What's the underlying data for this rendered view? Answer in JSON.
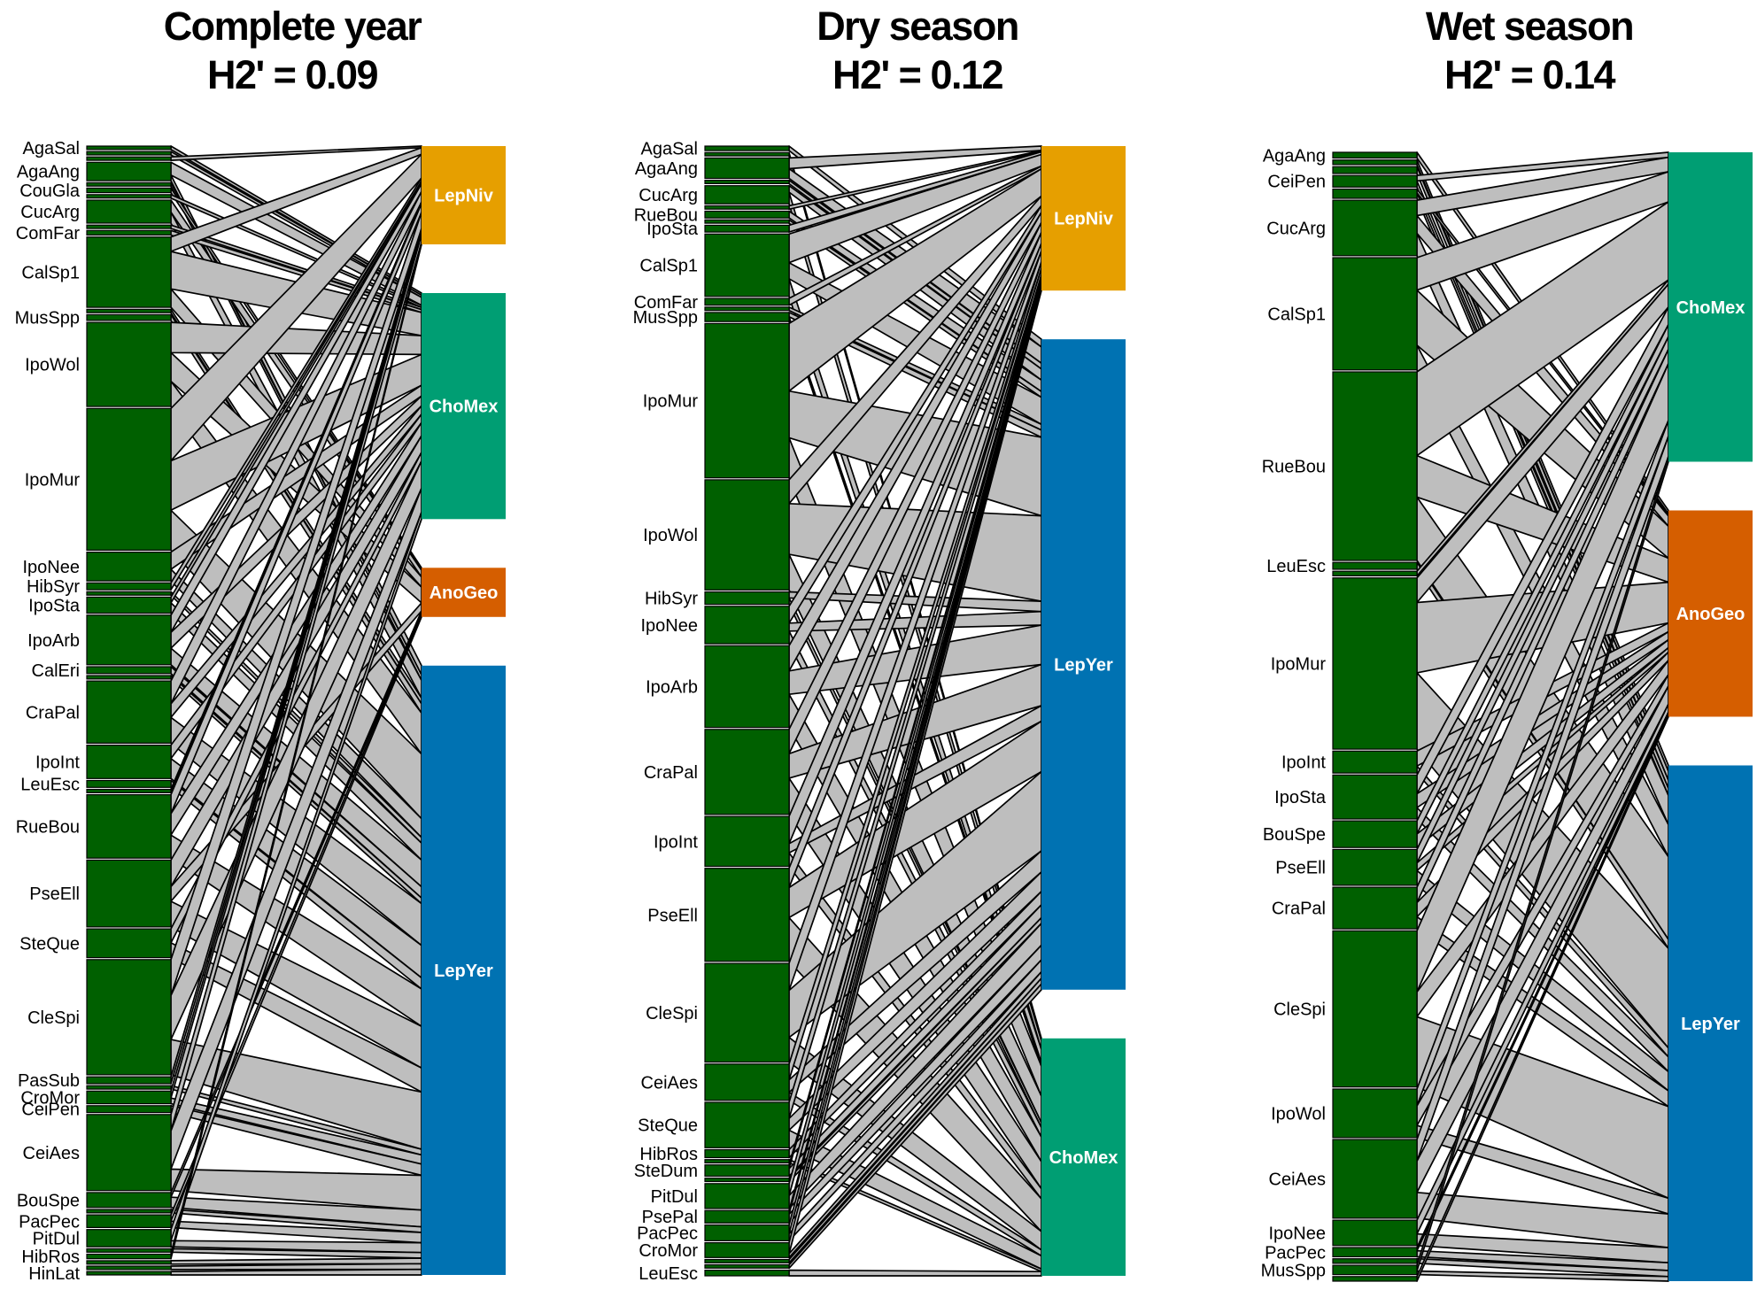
{
  "colors": {
    "plant_box": "#006000",
    "link_fill": "#bebebe",
    "link_stroke": "#000000",
    "LepNiv": "#e69f00",
    "ChoMex": "#009e73",
    "AnoGeo": "#d55e00",
    "LepYer": "#0072b2"
  },
  "panels": [
    {
      "title_line1": "Complete year",
      "title_line2": "H2' = 0.09",
      "animals": [
        {
          "name": "LepNiv",
          "label": "LepNiv",
          "share": 0.1
        },
        {
          "name": "ChoMex",
          "label": "ChoMex",
          "share": 0.23
        },
        {
          "name": "AnoGeo",
          "label": "AnoGeo",
          "share": 0.05
        },
        {
          "name": "LepYer",
          "label": "LepYer",
          "share": 0.62
        }
      ],
      "plants": [
        {
          "name": "AgaSal",
          "label": "AgaSal",
          "share": 0.003
        },
        {
          "name": "p1",
          "label": "",
          "share": 0.003
        },
        {
          "name": "p2",
          "label": "",
          "share": 0.003
        },
        {
          "name": "AgaAng",
          "label": "AgaAng",
          "share": 0.016
        },
        {
          "name": "p4",
          "label": "",
          "share": 0.003
        },
        {
          "name": "CouGla",
          "label": "CouGla",
          "share": 0.004
        },
        {
          "name": "p6",
          "label": "",
          "share": 0.003
        },
        {
          "name": "CucArg",
          "label": "CucArg",
          "share": 0.02
        },
        {
          "name": "p8",
          "label": "",
          "share": 0.003
        },
        {
          "name": "ComFar",
          "label": "ComFar",
          "share": 0.004
        },
        {
          "name": "CalSp1",
          "label": "CalSp1",
          "share": 0.061
        },
        {
          "name": "p11",
          "label": "",
          "share": 0.003
        },
        {
          "name": "MusSpp",
          "label": "MusSpp",
          "share": 0.005
        },
        {
          "name": "IpoWol",
          "label": "IpoWol",
          "share": 0.073
        },
        {
          "name": "IpoMur",
          "label": "IpoMur",
          "share": 0.123
        },
        {
          "name": "IpoNee",
          "label": "IpoNee",
          "share": 0.025
        },
        {
          "name": "HibSyr",
          "label": "HibSyr",
          "share": 0.006
        },
        {
          "name": "p17",
          "label": "",
          "share": 0.003
        },
        {
          "name": "IpoSta",
          "label": "IpoSta",
          "share": 0.014
        },
        {
          "name": "IpoArb",
          "label": "IpoArb",
          "share": 0.043
        },
        {
          "name": "CalEri",
          "label": "CalEri",
          "share": 0.006
        },
        {
          "name": "p21",
          "label": "",
          "share": 0.003
        },
        {
          "name": "CraPal",
          "label": "CraPal",
          "share": 0.054
        },
        {
          "name": "IpoInt",
          "label": "IpoInt",
          "share": 0.029
        },
        {
          "name": "LeuEsc",
          "label": "LeuEsc",
          "share": 0.006
        },
        {
          "name": "p25",
          "label": "",
          "share": 0.003
        },
        {
          "name": "RueBou",
          "label": "RueBou",
          "share": 0.055
        },
        {
          "name": "PseEll",
          "label": "PseEll",
          "share": 0.058
        },
        {
          "name": "SteQue",
          "label": "SteQue",
          "share": 0.025
        },
        {
          "name": "CleSpi",
          "label": "CleSpi",
          "share": 0.1
        },
        {
          "name": "PasSub",
          "label": "PasSub",
          "share": 0.006
        },
        {
          "name": "p31",
          "label": "",
          "share": 0.003
        },
        {
          "name": "CroMor",
          "label": "CroMor",
          "share": 0.011
        },
        {
          "name": "CeiPen",
          "label": "CeiPen",
          "share": 0.006
        },
        {
          "name": "CeiAes",
          "label": "CeiAes",
          "share": 0.066
        },
        {
          "name": "BouSpe",
          "label": "BouSpe",
          "share": 0.013
        },
        {
          "name": "p36",
          "label": "",
          "share": 0.003
        },
        {
          "name": "PacPec",
          "label": "PacPec",
          "share": 0.011
        },
        {
          "name": "PitDul",
          "label": "PitDul",
          "share": 0.015
        },
        {
          "name": "p39",
          "label": "",
          "share": 0.003
        },
        {
          "name": "HibRos",
          "label": "HibRos",
          "share": 0.004
        },
        {
          "name": "p41",
          "label": "",
          "share": 0.003
        },
        {
          "name": "p42",
          "label": "",
          "share": 0.003
        },
        {
          "name": "HinLat",
          "label": "HinLat",
          "share": 0.003
        }
      ]
    },
    {
      "title_line1": "Dry season",
      "title_line2": "H2' = 0.12",
      "animals": [
        {
          "name": "LepNiv",
          "label": "LepNiv",
          "share": 0.14
        },
        {
          "name": "LepYer",
          "label": "LepYer",
          "share": 0.63
        },
        {
          "name": "ChoMex",
          "label": "ChoMex",
          "share": 0.23
        }
      ],
      "plants": [
        {
          "name": "AgaSal",
          "label": "AgaSal",
          "share": 0.004
        },
        {
          "name": "p1",
          "label": "",
          "share": 0.003
        },
        {
          "name": "AgaAng",
          "label": "AgaAng",
          "share": 0.018
        },
        {
          "name": "p3",
          "label": "",
          "share": 0.003
        },
        {
          "name": "CucArg",
          "label": "CucArg",
          "share": 0.016
        },
        {
          "name": "p5",
          "label": "",
          "share": 0.003
        },
        {
          "name": "RueBou",
          "label": "RueBou",
          "share": 0.006
        },
        {
          "name": "p7",
          "label": "",
          "share": 0.003
        },
        {
          "name": "IpoSta",
          "label": "IpoSta",
          "share": 0.006
        },
        {
          "name": "CalSp1",
          "label": "CalSp1",
          "share": 0.055
        },
        {
          "name": "ComFar",
          "label": "ComFar",
          "share": 0.006
        },
        {
          "name": "p11",
          "label": "",
          "share": 0.003
        },
        {
          "name": "MusSpp",
          "label": "MusSpp",
          "share": 0.008
        },
        {
          "name": "IpoMur",
          "label": "IpoMur",
          "share": 0.136
        },
        {
          "name": "IpoWol",
          "label": "IpoWol",
          "share": 0.097
        },
        {
          "name": "HibSyr",
          "label": "HibSyr",
          "share": 0.011
        },
        {
          "name": "IpoNee",
          "label": "IpoNee",
          "share": 0.033
        },
        {
          "name": "IpoArb",
          "label": "IpoArb",
          "share": 0.072
        },
        {
          "name": "CraPal",
          "label": "CraPal",
          "share": 0.075
        },
        {
          "name": "IpoInt",
          "label": "IpoInt",
          "share": 0.044
        },
        {
          "name": "PseEll",
          "label": "PseEll",
          "share": 0.082
        },
        {
          "name": "CleSpi",
          "label": "CleSpi",
          "share": 0.087
        },
        {
          "name": "CeiAes",
          "label": "CeiAes",
          "share": 0.032
        },
        {
          "name": "SteQue",
          "label": "SteQue",
          "share": 0.04
        },
        {
          "name": "HibRos",
          "label": "HibRos",
          "share": 0.007
        },
        {
          "name": "p25",
          "label": "",
          "share": 0.003
        },
        {
          "name": "SteDum",
          "label": "SteDum",
          "share": 0.01
        },
        {
          "name": "p27",
          "label": "",
          "share": 0.003
        },
        {
          "name": "PitDul",
          "label": "PitDul",
          "share": 0.022
        },
        {
          "name": "PsePal",
          "label": "PsePal",
          "share": 0.011
        },
        {
          "name": "PacPec",
          "label": "PacPec",
          "share": 0.014
        },
        {
          "name": "CroMor",
          "label": "CroMor",
          "share": 0.013
        },
        {
          "name": "p32",
          "label": "",
          "share": 0.003
        },
        {
          "name": "p33",
          "label": "",
          "share": 0.003
        },
        {
          "name": "LeuEsc",
          "label": "LeuEsc",
          "share": 0.005
        }
      ]
    },
    {
      "title_line1": "Wet season",
      "title_line2": "H2' = 0.14",
      "animals": [
        {
          "name": "ChoMex",
          "label": "ChoMex",
          "share": 0.3
        },
        {
          "name": "AnoGeo",
          "label": "AnoGeo",
          "share": 0.2
        },
        {
          "name": "LepYer",
          "label": "LepYer",
          "share": 0.5
        }
      ],
      "plants": [
        {
          "name": "AgaAng",
          "label": "AgaAng",
          "share": 0.005
        },
        {
          "name": "p1",
          "label": "",
          "share": 0.004
        },
        {
          "name": "p2",
          "label": "",
          "share": 0.006
        },
        {
          "name": "CeiPen",
          "label": "CeiPen",
          "share": 0.01
        },
        {
          "name": "p4",
          "label": "",
          "share": 0.008
        },
        {
          "name": "CucArg",
          "label": "CucArg",
          "share": 0.048
        },
        {
          "name": "CalSp1",
          "label": "CalSp1",
          "share": 0.097
        },
        {
          "name": "RueBou",
          "label": "RueBou",
          "share": 0.163
        },
        {
          "name": "LeuEsc",
          "label": "LeuEsc",
          "share": 0.006
        },
        {
          "name": "p9",
          "label": "",
          "share": 0.004
        },
        {
          "name": "IpoMur",
          "label": "IpoMur",
          "share": 0.148
        },
        {
          "name": "IpoInt",
          "label": "IpoInt",
          "share": 0.019
        },
        {
          "name": "IpoSta",
          "label": "IpoSta",
          "share": 0.038
        },
        {
          "name": "BouSpe",
          "label": "BouSpe",
          "share": 0.023
        },
        {
          "name": "PseEll",
          "label": "PseEll",
          "share": 0.031
        },
        {
          "name": "CraPal",
          "label": "CraPal",
          "share": 0.036
        },
        {
          "name": "CleSpi",
          "label": "CleSpi",
          "share": 0.135
        },
        {
          "name": "IpoWol",
          "label": "IpoWol",
          "share": 0.042
        },
        {
          "name": "CeiAes",
          "label": "CeiAes",
          "share": 0.068
        },
        {
          "name": "IpoNee",
          "label": "IpoNee",
          "share": 0.022
        },
        {
          "name": "PacPec",
          "label": "PacPec",
          "share": 0.008
        },
        {
          "name": "p21",
          "label": "",
          "share": 0.004
        },
        {
          "name": "MusSpp",
          "label": "MusSpp",
          "share": 0.008
        },
        {
          "name": "p23",
          "label": "",
          "share": 0.004
        }
      ]
    }
  ]
}
